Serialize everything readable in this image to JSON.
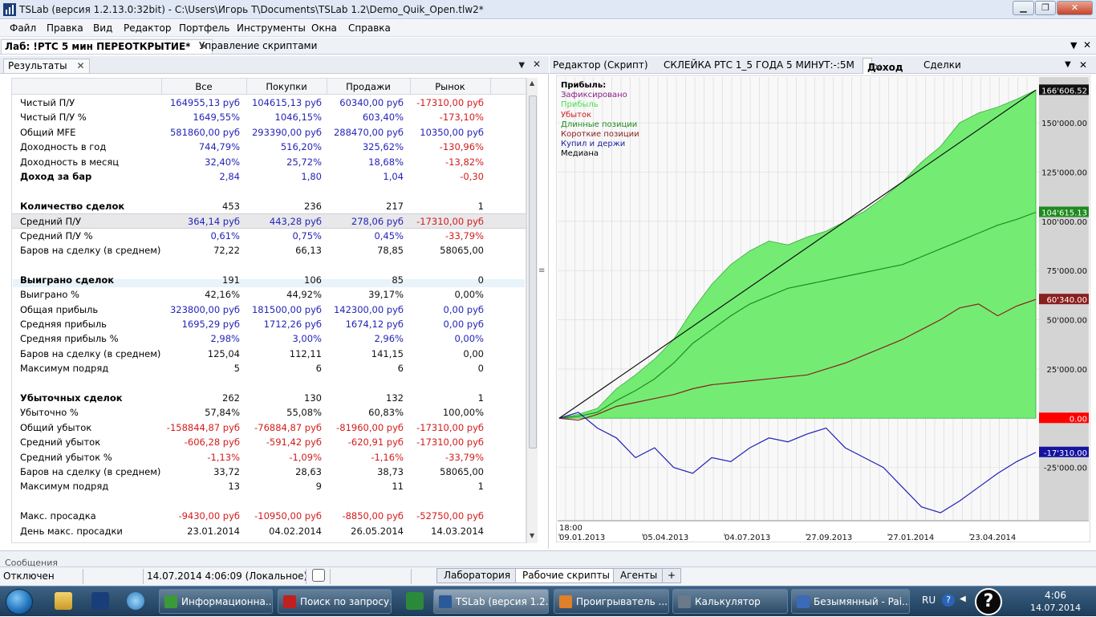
{
  "window": {
    "title": "TSLab (версия 1.2.13.0:32bit) - C:\\Users\\Игорь Т\\Documents\\TSLab 1.2\\Demo_Quik_Open.tlw2*"
  },
  "menu": [
    "Файл",
    "Правка",
    "Вид",
    "Редактор",
    "Портфель",
    "Инструменты",
    "Окна",
    "Справка"
  ],
  "doc_tabs": {
    "active": "Лаб: !РТС 5 мин ПЕРЕОТКРЫТИЕ*",
    "other": "Управление скриптами"
  },
  "results_panel": {
    "tab": "Результаты",
    "columns": [
      "Все",
      "Покупки",
      "Продажи",
      "Рынок"
    ],
    "rows": [
      {
        "label": "Чистый П/У",
        "vals": [
          "164955,13 руб",
          "104615,13 руб",
          "60340,00 руб",
          "-17310,00 руб"
        ],
        "cls": [
          "blue",
          "blue",
          "blue",
          "red"
        ]
      },
      {
        "label": "Чистый П/У %",
        "vals": [
          "1649,55%",
          "1046,15%",
          "603,40%",
          "-173,10%"
        ],
        "cls": [
          "blue",
          "blue",
          "blue",
          "red"
        ]
      },
      {
        "label": "Общий MFE",
        "vals": [
          "581860,00 руб",
          "293390,00 руб",
          "288470,00 руб",
          "10350,00 руб"
        ],
        "cls": [
          "blue",
          "blue",
          "blue",
          "blue"
        ]
      },
      {
        "label": "Доходность в год",
        "vals": [
          "744,79%",
          "516,20%",
          "325,62%",
          "-130,96%"
        ],
        "cls": [
          "blue",
          "blue",
          "blue",
          "red"
        ]
      },
      {
        "label": "Доходность в месяц",
        "vals": [
          "32,40%",
          "25,72%",
          "18,68%",
          "-13,82%"
        ],
        "cls": [
          "blue",
          "blue",
          "blue",
          "red"
        ]
      },
      {
        "label": "Доход за бар",
        "vals": [
          "2,84",
          "1,80",
          "1,04",
          "-0,30"
        ],
        "cls": [
          "blue",
          "blue",
          "blue",
          "red"
        ],
        "bold": true
      },
      {
        "label": "",
        "vals": [
          "",
          "",
          "",
          ""
        ],
        "cls": [
          "blk",
          "blk",
          "blk",
          "blk"
        ]
      },
      {
        "label": "Количество сделок",
        "vals": [
          "453",
          "236",
          "217",
          "1"
        ],
        "cls": [
          "blk",
          "blk",
          "blk",
          "blk"
        ],
        "bold": true
      },
      {
        "label": "Средний П/У",
        "vals": [
          "364,14 руб",
          "443,28 руб",
          "278,06 руб",
          "-17310,00 руб"
        ],
        "cls": [
          "blue",
          "blue",
          "blue",
          "red"
        ],
        "hl": true
      },
      {
        "label": "Средний П/У %",
        "vals": [
          "0,61%",
          "0,75%",
          "0,45%",
          "-33,79%"
        ],
        "cls": [
          "blue",
          "blue",
          "blue",
          "red"
        ]
      },
      {
        "label": "Баров на сделку (в среднем)",
        "vals": [
          "72,22",
          "66,13",
          "78,85",
          "58065,00"
        ],
        "cls": [
          "blk",
          "blk",
          "blk",
          "blk"
        ]
      },
      {
        "label": "",
        "vals": [
          "",
          "",
          "",
          ""
        ],
        "cls": [
          "blk",
          "blk",
          "blk",
          "blk"
        ]
      },
      {
        "label": "Выиграно сделок",
        "vals": [
          "191",
          "106",
          "85",
          "0"
        ],
        "cls": [
          "blk",
          "blk",
          "blk",
          "blk"
        ],
        "bold": true
      },
      {
        "label": "Выиграно %",
        "vals": [
          "42,16%",
          "44,92%",
          "39,17%",
          "0,00%"
        ],
        "cls": [
          "blk",
          "blk",
          "blk",
          "blk"
        ]
      },
      {
        "label": "Общая прибыль",
        "vals": [
          "323800,00 руб",
          "181500,00 руб",
          "142300,00 руб",
          "0,00 руб"
        ],
        "cls": [
          "blue",
          "blue",
          "blue",
          "blue"
        ]
      },
      {
        "label": "Средняя прибыль",
        "vals": [
          "1695,29 руб",
          "1712,26 руб",
          "1674,12 руб",
          "0,00 руб"
        ],
        "cls": [
          "blue",
          "blue",
          "blue",
          "blue"
        ]
      },
      {
        "label": "Средняя прибыль %",
        "vals": [
          "2,98%",
          "3,00%",
          "2,96%",
          "0,00%"
        ],
        "cls": [
          "blue",
          "blue",
          "blue",
          "blue"
        ]
      },
      {
        "label": "Баров на сделку (в среднем)",
        "vals": [
          "125,04",
          "112,11",
          "141,15",
          "0,00"
        ],
        "cls": [
          "blk",
          "blk",
          "blk",
          "blk"
        ]
      },
      {
        "label": "Максимум подряд",
        "vals": [
          "5",
          "6",
          "6",
          "0"
        ],
        "cls": [
          "blk",
          "blk",
          "blk",
          "blk"
        ]
      },
      {
        "label": "",
        "vals": [
          "",
          "",
          "",
          ""
        ],
        "cls": [
          "blk",
          "blk",
          "blk",
          "blk"
        ]
      },
      {
        "label": "Убыточных сделок",
        "vals": [
          "262",
          "130",
          "132",
          "1"
        ],
        "cls": [
          "blk",
          "blk",
          "blk",
          "blk"
        ],
        "bold": true
      },
      {
        "label": "Убыточно %",
        "vals": [
          "57,84%",
          "55,08%",
          "60,83%",
          "100,00%"
        ],
        "cls": [
          "blk",
          "blk",
          "blk",
          "blk"
        ]
      },
      {
        "label": "Общий убыток",
        "vals": [
          "-158844,87 руб",
          "-76884,87 руб",
          "-81960,00 руб",
          "-17310,00 руб"
        ],
        "cls": [
          "red",
          "red",
          "red",
          "red"
        ]
      },
      {
        "label": "Средний убыток",
        "vals": [
          "-606,28 руб",
          "-591,42 руб",
          "-620,91 руб",
          "-17310,00 руб"
        ],
        "cls": [
          "red",
          "red",
          "red",
          "red"
        ]
      },
      {
        "label": "Средний убыток %",
        "vals": [
          "-1,13%",
          "-1,09%",
          "-1,16%",
          "-33,79%"
        ],
        "cls": [
          "red",
          "red",
          "red",
          "red"
        ]
      },
      {
        "label": "Баров на сделку (в среднем)",
        "vals": [
          "33,72",
          "28,63",
          "38,73",
          "58065,00"
        ],
        "cls": [
          "blk",
          "blk",
          "blk",
          "blk"
        ]
      },
      {
        "label": "Максимум подряд",
        "vals": [
          "13",
          "9",
          "11",
          "1"
        ],
        "cls": [
          "blk",
          "blk",
          "blk",
          "blk"
        ]
      },
      {
        "label": "",
        "vals": [
          "",
          "",
          "",
          ""
        ],
        "cls": [
          "blk",
          "blk",
          "blk",
          "blk"
        ]
      },
      {
        "label": "Макс. просадка",
        "vals": [
          "-9430,00 руб",
          "-10950,00 руб",
          "-8850,00 руб",
          "-52750,00 руб"
        ],
        "cls": [
          "red",
          "red",
          "red",
          "red"
        ]
      },
      {
        "label": "День макс. просадки",
        "vals": [
          "23.01.2014",
          "04.02.2014",
          "26.05.2014",
          "14.03.2014"
        ],
        "cls": [
          "blk",
          "blk",
          "blk",
          "blk"
        ]
      }
    ]
  },
  "right_tabs": {
    "editor": "Редактор (Скрипт)",
    "splice": "СКЛЕЙКА РТС 1_5 ГОДА 5 МИНУТ:-:5М",
    "income": "Доход",
    "trades": "Сделки"
  },
  "chart": {
    "legend": [
      {
        "text": "Прибыль:",
        "color": "#000000",
        "bold": true
      },
      {
        "text": "Зафиксировано",
        "color": "#8a1f8a"
      },
      {
        "text": "Прибыль",
        "color": "#49e049"
      },
      {
        "text": "Убыток",
        "color": "#d02020"
      },
      {
        "text": "Длинные позиции",
        "color": "#1f8a1f"
      },
      {
        "text": "Короткие позиции",
        "color": "#8a1f1f"
      },
      {
        "text": "Купил и держи",
        "color": "#2020a8"
      },
      {
        "text": "Медиана",
        "color": "#000000"
      }
    ],
    "y_ticks": [
      "150'000.00",
      "125'000.00",
      "100'000.00",
      "75'000.00",
      "50'000.00",
      "25'000.00",
      "-25'000.00"
    ],
    "value_tags": [
      {
        "text": "166'606.52",
        "bg": "#111111",
        "fg": "#ffffff"
      },
      {
        "text": "104'615.13",
        "bg": "#1f8a1f",
        "fg": "#ffffff"
      },
      {
        "text": "60'340.00",
        "bg": "#8a1f1f",
        "fg": "#ffffff"
      },
      {
        "text": "0.00",
        "bg": "#ff0000",
        "fg": "#ffffff"
      },
      {
        "text": "-17'310.00",
        "bg": "#1414a0",
        "fg": "#ffffff"
      }
    ],
    "x_time": "18:00",
    "x_dates": [
      "09.01.2013",
      "05.04.2013",
      "04.07.2013",
      "27.09.2013",
      "27.01.2014",
      "23.04.2014"
    ]
  },
  "chart_data": {
    "type": "area",
    "ylim": [
      -50000,
      170000
    ],
    "series": [
      {
        "name": "Прибыль",
        "values": [
          0,
          2000,
          5000,
          15000,
          22000,
          30000,
          40000,
          55000,
          68000,
          78000,
          85000,
          90000,
          88000,
          92000,
          95000,
          100000,
          105000,
          112000,
          120000,
          130000,
          138000,
          150000,
          155000,
          158000,
          162000,
          166606.52
        ]
      },
      {
        "name": "Длинные позиции",
        "values": [
          0,
          1000,
          3000,
          9000,
          14000,
          20000,
          28000,
          38000,
          45000,
          52000,
          58000,
          62000,
          66000,
          68000,
          70000,
          72000,
          74000,
          76000,
          78000,
          82000,
          86000,
          90000,
          94000,
          98000,
          101000,
          104615.13
        ]
      },
      {
        "name": "Короткие позиции",
        "values": [
          0,
          -1000,
          2000,
          6000,
          8000,
          10000,
          12000,
          15000,
          17000,
          18000,
          19000,
          20000,
          21000,
          22000,
          25000,
          28000,
          32000,
          36000,
          40000,
          45000,
          50000,
          56000,
          58000,
          52000,
          57000,
          60340
        ]
      },
      {
        "name": "Купил и держи",
        "values": [
          0,
          3000,
          -5000,
          -10000,
          -20000,
          -15000,
          -25000,
          -28000,
          -20000,
          -22000,
          -15000,
          -10000,
          -12000,
          -8000,
          -5000,
          -15000,
          -20000,
          -25000,
          -35000,
          -45000,
          -48000,
          -42000,
          -35000,
          -28000,
          -22000,
          -17310
        ]
      },
      {
        "name": "Медиана",
        "values": [
          0,
          166606.52
        ]
      }
    ]
  },
  "status": {
    "messages_label": "Сообщения",
    "connection": "Отключен",
    "datetime": "14.07.2014 4:06:09 (Локальное)",
    "tabs": [
      "Лаборатория",
      "Рабочие скрипты",
      "Агенты",
      "+"
    ]
  },
  "taskbar": {
    "items": [
      {
        "text": "Информационна...",
        "color": "#3a9a3a"
      },
      {
        "text": "Поиск по запросу...",
        "color": "#c22020"
      },
      {
        "text": "TSLab (версия 1.2....",
        "color": "#2a5a9a"
      },
      {
        "text": "Проигрыватель ...",
        "color": "#e0802a"
      },
      {
        "text": "Калькулятор",
        "color": "#6a7a8a"
      },
      {
        "text": "Безымянный - Pai...",
        "color": "#3a6ab8"
      }
    ],
    "lang": "RU",
    "time": "4:06",
    "date": "14.07.2014"
  }
}
